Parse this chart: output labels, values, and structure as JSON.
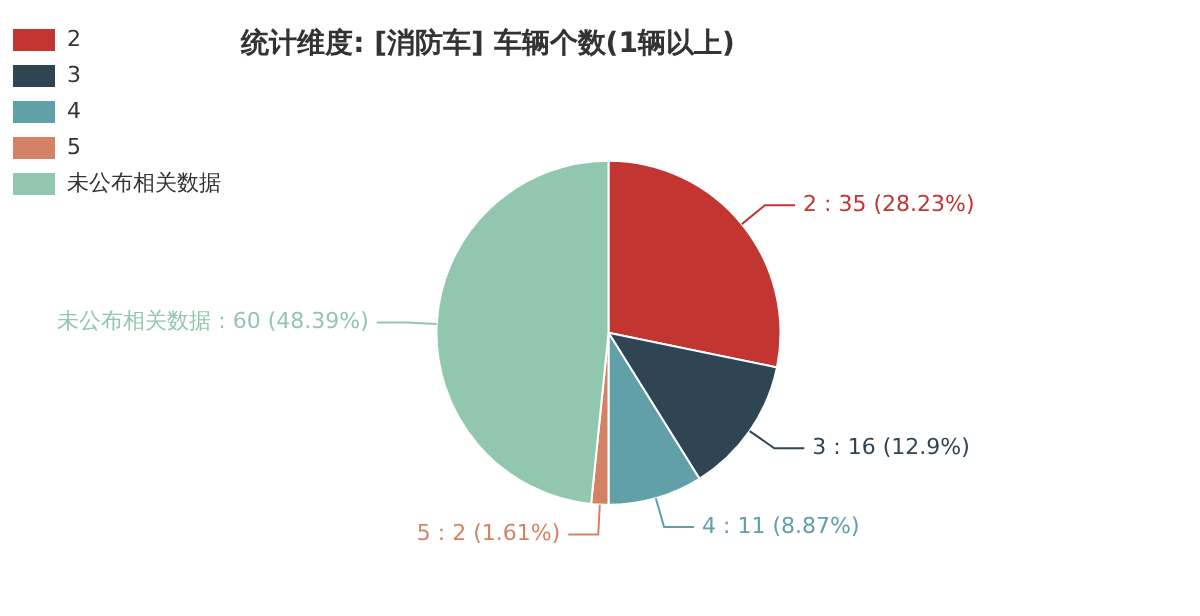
{
  "chart_data": {
    "type": "pie",
    "title": "统计维度: [消防车] 车辆个数(1辆以上)",
    "categories": [
      "2",
      "3",
      "4",
      "5",
      "未公布相关数据"
    ],
    "values": [
      35,
      16,
      11,
      2,
      60
    ],
    "colors": [
      "#c23531",
      "#2f4554",
      "#61a0a8",
      "#d48265",
      "#91c7ae"
    ],
    "value_labels": [
      "2 : 35 (28.23%)",
      "3 : 16 (12.9%)",
      "4 : 11 (8.87%)",
      "5 : 2 (1.61%)",
      "未公布相关数据 : 60 (48.39%)"
    ],
    "legend": "top left"
  }
}
